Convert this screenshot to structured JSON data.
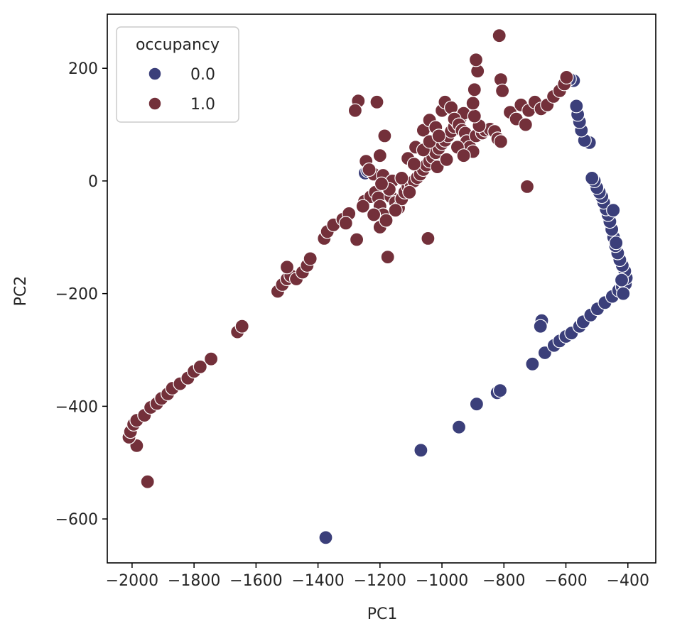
{
  "chart_data": {
    "type": "scatter",
    "title": "",
    "xlabel": "PC1",
    "ylabel": "PC2",
    "xlim": [
      -2080,
      -310
    ],
    "ylim": [
      -678,
      296
    ],
    "xticks": [
      -2000,
      -1800,
      -1600,
      -1400,
      -1200,
      -1000,
      -800,
      -600,
      -400
    ],
    "yticks": [
      200,
      0,
      -200,
      -400,
      -600
    ],
    "grid": false,
    "legend": {
      "title": "occupancy",
      "placement": "top-left"
    },
    "series": [
      {
        "name": "0.0",
        "color": "#3b3f7a",
        "points": [
          [
            -1375,
            -633
          ],
          [
            -1068,
            -478
          ],
          [
            -945,
            -437
          ],
          [
            -888,
            -396
          ],
          [
            -822,
            -376
          ],
          [
            -812,
            -372
          ],
          [
            -708,
            -325
          ],
          [
            -668,
            -305
          ],
          [
            -638,
            -292
          ],
          [
            -620,
            -284
          ],
          [
            -600,
            -276
          ],
          [
            -582,
            -270
          ],
          [
            -556,
            -258
          ],
          [
            -544,
            -250
          ],
          [
            -520,
            -238
          ],
          [
            -498,
            -227
          ],
          [
            -474,
            -216
          ],
          [
            -450,
            -205
          ],
          [
            -430,
            -194
          ],
          [
            -418,
            -188
          ],
          [
            -408,
            -183
          ],
          [
            -405,
            -172
          ],
          [
            -410,
            -160
          ],
          [
            -418,
            -150
          ],
          [
            -426,
            -140
          ],
          [
            -433,
            -128
          ],
          [
            -440,
            -115
          ],
          [
            -446,
            -100
          ],
          [
            -452,
            -86
          ],
          [
            -458,
            -72
          ],
          [
            -464,
            -60
          ],
          [
            -470,
            -50
          ],
          [
            -478,
            -38
          ],
          [
            -484,
            -28
          ],
          [
            -492,
            -20
          ],
          [
            -500,
            -12
          ],
          [
            -508,
            0
          ],
          [
            -516,
            5
          ],
          [
            -524,
            68
          ],
          [
            -540,
            72
          ],
          [
            -550,
            90
          ],
          [
            -556,
            105
          ],
          [
            -562,
            118
          ],
          [
            -566,
            133
          ],
          [
            -575,
            178
          ],
          [
            -588,
            181
          ],
          [
            -678,
            -248
          ],
          [
            -682,
            -258
          ],
          [
            -1248,
            14
          ],
          [
            -1240,
            18
          ],
          [
            -420,
            -176
          ],
          [
            -415,
            -200
          ],
          [
            -447,
            -52
          ],
          [
            -438,
            -110
          ]
        ]
      },
      {
        "name": "1.0",
        "color": "#73303a",
        "points": [
          [
            -1950,
            -534
          ],
          [
            -1985,
            -470
          ],
          [
            -2010,
            -455
          ],
          [
            -2005,
            -445
          ],
          [
            -1995,
            -432
          ],
          [
            -1985,
            -425
          ],
          [
            -1960,
            -416
          ],
          [
            -1940,
            -402
          ],
          [
            -1920,
            -395
          ],
          [
            -1905,
            -386
          ],
          [
            -1885,
            -378
          ],
          [
            -1870,
            -368
          ],
          [
            -1845,
            -360
          ],
          [
            -1820,
            -350
          ],
          [
            -1800,
            -338
          ],
          [
            -1780,
            -330
          ],
          [
            -1745,
            -316
          ],
          [
            -1660,
            -268
          ],
          [
            -1645,
            -258
          ],
          [
            -1530,
            -196
          ],
          [
            -1515,
            -184
          ],
          [
            -1500,
            -174
          ],
          [
            -1488,
            -168
          ],
          [
            -1470,
            -174
          ],
          [
            -1450,
            -162
          ],
          [
            -1435,
            -150
          ],
          [
            -1425,
            -138
          ],
          [
            -1500,
            -153
          ],
          [
            -1380,
            -102
          ],
          [
            -1370,
            -90
          ],
          [
            -1350,
            -78
          ],
          [
            -1320,
            -68
          ],
          [
            -1300,
            -58
          ],
          [
            -1275,
            -104
          ],
          [
            -1250,
            -36
          ],
          [
            -1230,
            -28
          ],
          [
            -1215,
            -20
          ],
          [
            -1205,
            -30
          ],
          [
            -1200,
            -45
          ],
          [
            -1200,
            -82
          ],
          [
            -1190,
            -60
          ],
          [
            -1180,
            -70
          ],
          [
            -1175,
            -135
          ],
          [
            -1165,
            -28
          ],
          [
            -1150,
            -38
          ],
          [
            -1140,
            -48
          ],
          [
            -1130,
            -32
          ],
          [
            -1120,
            -20
          ],
          [
            -1110,
            -10
          ],
          [
            -1100,
            -5
          ],
          [
            -1090,
            0
          ],
          [
            -1080,
            6
          ],
          [
            -1070,
            12
          ],
          [
            -1060,
            20
          ],
          [
            -1050,
            28
          ],
          [
            -1040,
            35
          ],
          [
            -1030,
            42
          ],
          [
            -1020,
            50
          ],
          [
            -1010,
            58
          ],
          [
            -1000,
            66
          ],
          [
            -990,
            72
          ],
          [
            -980,
            80
          ],
          [
            -970,
            88
          ],
          [
            -960,
            96
          ],
          [
            -950,
            104
          ],
          [
            -940,
            112
          ],
          [
            -930,
            120
          ],
          [
            -1045,
            -102
          ],
          [
            -1270,
            142
          ],
          [
            -1280,
            125
          ],
          [
            -1210,
            140
          ],
          [
            -1245,
            35
          ],
          [
            -1200,
            45
          ],
          [
            -1185,
            80
          ],
          [
            -1220,
            12
          ],
          [
            -1235,
            20
          ],
          [
            -1190,
            10
          ],
          [
            -1160,
            0
          ],
          [
            -1130,
            5
          ],
          [
            -1085,
            60
          ],
          [
            -1060,
            90
          ],
          [
            -1040,
            108
          ],
          [
            -1020,
            95
          ],
          [
            -1000,
            125
          ],
          [
            -990,
            140
          ],
          [
            -970,
            130
          ],
          [
            -960,
            110
          ],
          [
            -945,
            100
          ],
          [
            -935,
            90
          ],
          [
            -925,
            85
          ],
          [
            -920,
            70
          ],
          [
            -910,
            60
          ],
          [
            -900,
            52
          ],
          [
            -890,
            80
          ],
          [
            -870,
            85
          ],
          [
            -860,
            90
          ],
          [
            -845,
            92
          ],
          [
            -830,
            88
          ],
          [
            -820,
            75
          ],
          [
            -810,
            70
          ],
          [
            -880,
            98
          ],
          [
            -895,
            115
          ],
          [
            -900,
            138
          ],
          [
            -895,
            162
          ],
          [
            -885,
            195
          ],
          [
            -890,
            215
          ],
          [
            -815,
            258
          ],
          [
            -810,
            180
          ],
          [
            -805,
            160
          ],
          [
            -780,
            122
          ],
          [
            -760,
            110
          ],
          [
            -745,
            135
          ],
          [
            -730,
            100
          ],
          [
            -725,
            -10
          ],
          [
            -720,
            125
          ],
          [
            -700,
            140
          ],
          [
            -680,
            128
          ],
          [
            -660,
            135
          ],
          [
            -640,
            150
          ],
          [
            -620,
            160
          ],
          [
            -605,
            172
          ],
          [
            -598,
            184
          ],
          [
            -1110,
            40
          ],
          [
            -1090,
            30
          ],
          [
            -1060,
            55
          ],
          [
            -1040,
            70
          ],
          [
            -1010,
            80
          ],
          [
            -1015,
            25
          ],
          [
            -985,
            38
          ],
          [
            -950,
            60
          ],
          [
            -930,
            45
          ],
          [
            -1105,
            -20
          ],
          [
            -1150,
            -52
          ],
          [
            -1170,
            -15
          ],
          [
            -1195,
            -5
          ],
          [
            -1220,
            -60
          ],
          [
            -1255,
            -45
          ],
          [
            -1310,
            -75
          ]
        ]
      }
    ]
  }
}
